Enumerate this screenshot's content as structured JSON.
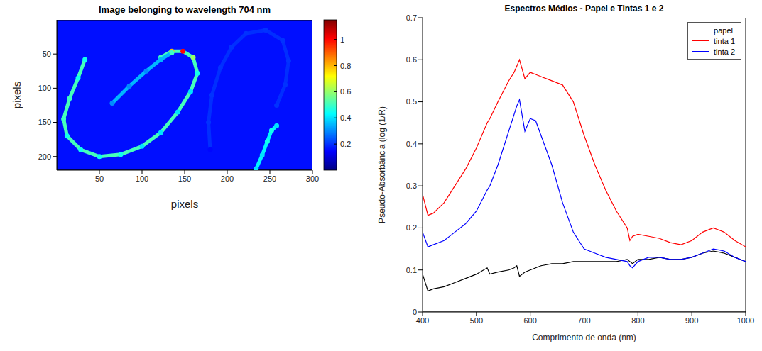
{
  "chart_data": [
    {
      "type": "heatmap",
      "title": "Image belonging to wavelength 704 nm",
      "x_label": "pixels",
      "y_label": "pixels",
      "xlim": [
        0,
        300
      ],
      "ylim": [
        220,
        0
      ],
      "xticks": [
        50,
        100,
        150,
        200,
        250,
        300
      ],
      "yticks": [
        50,
        100,
        150,
        200
      ],
      "background": 0.16,
      "strokes": [
        {
          "x": [
            33,
            25,
            15,
            8,
            12,
            28,
            50,
            75,
            100,
            122,
            142,
            157,
            165,
            160,
            148,
            135,
            122
          ],
          "y": [
            58,
            85,
            115,
            145,
            170,
            190,
            200,
            197,
            185,
            165,
            135,
            105,
            78,
            55,
            46,
            46,
            55
          ],
          "values": [
            0.45,
            0.45,
            0.5,
            0.5,
            0.45,
            0.45,
            0.45,
            0.45,
            0.4,
            0.4,
            0.4,
            0.4,
            0.45,
            0.6,
            1.0,
            0.8,
            0.5
          ]
        },
        {
          "x": [
            65,
            85,
            105,
            122,
            135
          ],
          "y": [
            122,
            97,
            75,
            58,
            48
          ],
          "values": [
            0.3,
            0.3,
            0.3,
            0.35,
            0.5
          ]
        },
        {
          "x": [
            180,
            178,
            182,
            192,
            205,
            222,
            245,
            265,
            272,
            268,
            258
          ],
          "y": [
            190,
            150,
            110,
            70,
            40,
            20,
            15,
            30,
            60,
            95,
            125
          ],
          "values": [
            0.15,
            0.2,
            0.2,
            0.2,
            0.2,
            0.2,
            0.2,
            0.2,
            0.2,
            0.2,
            0.2
          ]
        },
        {
          "x": [
            258,
            252,
            247,
            241,
            234
          ],
          "y": [
            155,
            162,
            178,
            198,
            218
          ],
          "values": [
            0.4,
            0.45,
            0.45,
            0.4,
            0.4
          ]
        }
      ],
      "colorbar": {
        "range": [
          0,
          1.15
        ],
        "ticks": [
          0.2,
          0.4,
          0.6,
          0.8,
          1
        ]
      }
    },
    {
      "type": "line",
      "title": "Espectros Médios - Papel e Tintas 1 e 2",
      "x_label": "Comprimento de onda (nm)",
      "y_label": "Pseudo-Absorbância (log (1/R)",
      "x": [
        400,
        410,
        420,
        440,
        460,
        480,
        500,
        520,
        525,
        540,
        560,
        570,
        575,
        580,
        590,
        600,
        610,
        620,
        640,
        660,
        680,
        700,
        720,
        740,
        760,
        780,
        785,
        790,
        800,
        820,
        840,
        860,
        880,
        900,
        920,
        940,
        960,
        980,
        1000
      ],
      "xlim": [
        400,
        1000
      ],
      "xticks": [
        400,
        500,
        600,
        700,
        800,
        900,
        1000
      ],
      "ylim": [
        0,
        0.7
      ],
      "yticks": [
        0,
        0.1,
        0.2,
        0.3,
        0.4,
        0.5,
        0.6,
        0.7
      ],
      "legend": "upper right",
      "series": [
        {
          "name": "papel",
          "color": "#000000",
          "values": [
            0.09,
            0.05,
            0.055,
            0.06,
            0.07,
            0.08,
            0.09,
            0.105,
            0.09,
            0.095,
            0.1,
            0.105,
            0.11,
            0.085,
            0.095,
            0.1,
            0.105,
            0.11,
            0.115,
            0.115,
            0.12,
            0.12,
            0.12,
            0.12,
            0.12,
            0.125,
            0.12,
            0.115,
            0.125,
            0.125,
            0.13,
            0.125,
            0.125,
            0.13,
            0.14,
            0.145,
            0.14,
            0.13,
            0.12
          ]
        },
        {
          "name": "tinta 1",
          "color": "#ff0000",
          "values": [
            0.28,
            0.23,
            0.235,
            0.26,
            0.3,
            0.34,
            0.39,
            0.45,
            0.46,
            0.5,
            0.55,
            0.57,
            0.585,
            0.6,
            0.555,
            0.57,
            0.565,
            0.56,
            0.55,
            0.54,
            0.5,
            0.42,
            0.35,
            0.29,
            0.24,
            0.2,
            0.17,
            0.18,
            0.185,
            0.18,
            0.175,
            0.165,
            0.16,
            0.17,
            0.19,
            0.2,
            0.19,
            0.17,
            0.155
          ]
        },
        {
          "name": "tinta 2",
          "color": "#0000ff",
          "values": [
            0.19,
            0.155,
            0.16,
            0.17,
            0.19,
            0.21,
            0.24,
            0.29,
            0.3,
            0.35,
            0.43,
            0.47,
            0.49,
            0.505,
            0.43,
            0.46,
            0.455,
            0.42,
            0.35,
            0.26,
            0.19,
            0.15,
            0.14,
            0.13,
            0.125,
            0.12,
            0.11,
            0.105,
            0.12,
            0.13,
            0.13,
            0.125,
            0.125,
            0.13,
            0.14,
            0.15,
            0.145,
            0.13,
            0.12
          ]
        }
      ]
    }
  ]
}
